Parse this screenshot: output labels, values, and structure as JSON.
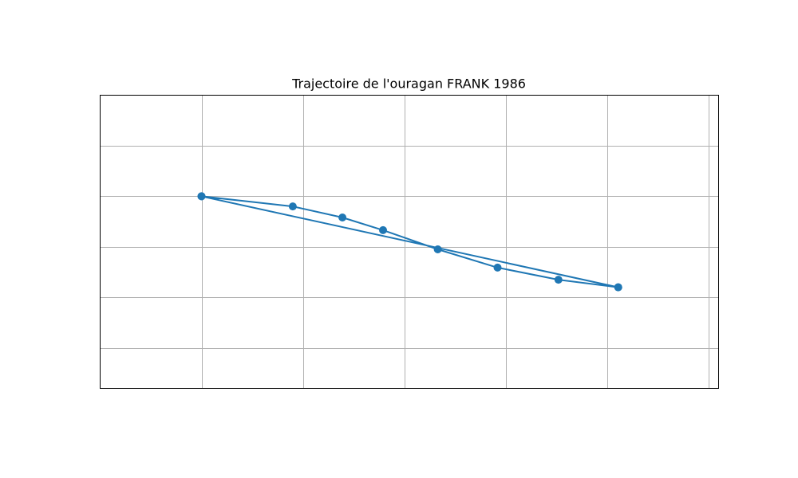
{
  "chart_data": {
    "type": "line",
    "title": "Trajectoire de l'ouragan FRANK 1986",
    "xlabel": "",
    "ylabel": "",
    "grid": true,
    "line_color": "#1f77b4",
    "series": [
      {
        "x": [
          1.0,
          1.9,
          2.39,
          2.79,
          3.33,
          3.92,
          4.52,
          5.11,
          1.0,
          5.11
        ],
        "y": [
          4.0,
          3.8,
          3.58,
          3.33,
          2.95,
          2.59,
          2.35,
          2.2,
          4.0,
          2.2
        ]
      }
    ],
    "xlim": [
      0.0,
      6.1
    ],
    "ylim": [
      0.2,
      6.0
    ],
    "x_gridlines": [
      1,
      2,
      3,
      4,
      5,
      6
    ],
    "y_gridlines": [
      1,
      2,
      3,
      4,
      5
    ]
  }
}
